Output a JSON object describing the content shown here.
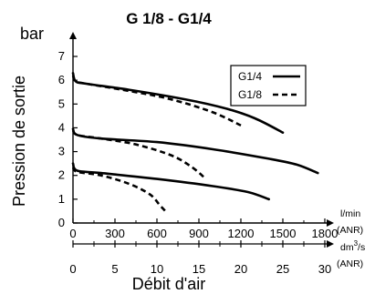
{
  "chart_data": {
    "type": "line",
    "title": "G 1/8 - G1/4",
    "ylabel": "Pression de sortie",
    "yunit": "bar",
    "xlabel": "Débit d'air",
    "xunit_primary": "l/min",
    "xunit_primary_note": "(ANR)",
    "xunit_secondary": "dm",
    "xunit_secondary_sup": "3",
    "xunit_secondary_tail": "/s",
    "xunit_secondary_note": "(ANR)",
    "ylim": [
      0,
      7
    ],
    "xlim": [
      0,
      1800
    ],
    "yticks": [
      "0",
      "1",
      "2",
      "3",
      "4",
      "5",
      "6",
      "7"
    ],
    "xticks_primary": [
      "0",
      "300",
      "600",
      "900",
      "1200",
      "1500",
      "1800"
    ],
    "xticks_secondary": [
      "0",
      "5",
      "10",
      "15",
      "20",
      "25",
      "30"
    ],
    "grid": false,
    "legend_position": "top-right",
    "series": [
      {
        "name": "G1/4",
        "style": "solid",
        "points": [
          [
            0,
            6.3
          ],
          [
            20,
            5.95
          ],
          [
            100,
            5.85
          ],
          [
            400,
            5.6
          ],
          [
            800,
            5.2
          ],
          [
            1100,
            4.8
          ],
          [
            1300,
            4.4
          ],
          [
            1500,
            3.8
          ]
        ]
      },
      {
        "name": "G1/4",
        "style": "solid",
        "points": [
          [
            0,
            3.95
          ],
          [
            30,
            3.7
          ],
          [
            200,
            3.55
          ],
          [
            600,
            3.4
          ],
          [
            1000,
            3.1
          ],
          [
            1400,
            2.7
          ],
          [
            1600,
            2.45
          ],
          [
            1750,
            2.1
          ]
        ]
      },
      {
        "name": "G1/4",
        "style": "solid",
        "points": [
          [
            0,
            2.5
          ],
          [
            30,
            2.2
          ],
          [
            200,
            2.1
          ],
          [
            600,
            1.85
          ],
          [
            1000,
            1.55
          ],
          [
            1250,
            1.3
          ],
          [
            1400,
            1.0
          ]
        ]
      },
      {
        "name": "G1/8",
        "style": "dashed",
        "points": [
          [
            0,
            6.2
          ],
          [
            20,
            5.95
          ],
          [
            100,
            5.85
          ],
          [
            400,
            5.55
          ],
          [
            700,
            5.2
          ],
          [
            1000,
            4.65
          ],
          [
            1200,
            4.1
          ]
        ]
      },
      {
        "name": "G1/8",
        "style": "dashed",
        "points": [
          [
            0,
            3.9
          ],
          [
            30,
            3.7
          ],
          [
            200,
            3.55
          ],
          [
            450,
            3.3
          ],
          [
            700,
            2.85
          ],
          [
            850,
            2.35
          ],
          [
            950,
            1.85
          ]
        ]
      },
      {
        "name": "G1/8",
        "style": "dashed",
        "points": [
          [
            0,
            2.35
          ],
          [
            30,
            2.15
          ],
          [
            200,
            2.0
          ],
          [
            400,
            1.65
          ],
          [
            550,
            1.2
          ],
          [
            620,
            0.75
          ],
          [
            660,
            0.5
          ]
        ]
      }
    ],
    "legend": [
      {
        "name": "G1/4",
        "style": "solid"
      },
      {
        "name": "G1/8",
        "style": "dashed"
      }
    ]
  }
}
